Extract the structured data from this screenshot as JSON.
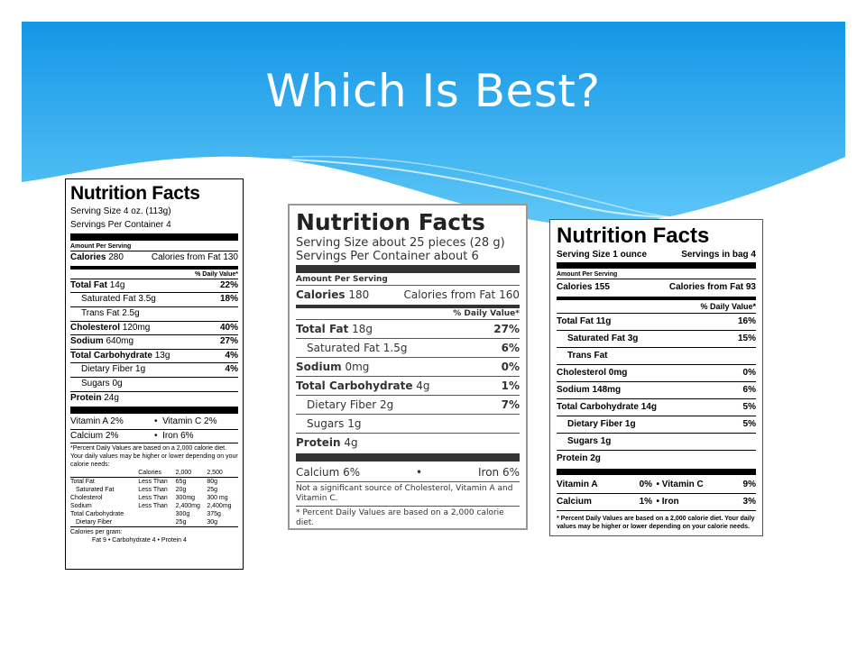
{
  "slide": {
    "title": "Which Is Best?",
    "colors": {
      "header_top": "#1496e6",
      "header_bottom": "#5ec7f7",
      "background": "#ffffff"
    }
  },
  "labels": [
    {
      "title": "Nutrition Facts",
      "serving_size": "Serving Size 4 oz. (113g)",
      "servings_per_container": "Servings Per Container 4",
      "amount_per_serving": "Amount Per Serving",
      "calories": {
        "label": "Calories",
        "value": "280",
        "fat_label": "Calories from Fat",
        "fat_value": "130"
      },
      "daily_value_header": "% Daily Value*",
      "nutrients": [
        {
          "name": "Total Fat",
          "amount": "14g",
          "dv": "22%",
          "bold": true,
          "indent": false
        },
        {
          "name": "Saturated Fat",
          "amount": "3.5g",
          "dv": "18%",
          "bold": false,
          "indent": true
        },
        {
          "name": "Trans Fat",
          "amount": "2.5g",
          "dv": "",
          "bold": false,
          "indent": true
        },
        {
          "name": "Cholesterol",
          "amount": "120mg",
          "dv": "40%",
          "bold": true,
          "indent": false
        },
        {
          "name": "Sodium",
          "amount": "640mg",
          "dv": "27%",
          "bold": true,
          "indent": false
        },
        {
          "name": "Total Carbohydrate",
          "amount": "13g",
          "dv": "4%",
          "bold": true,
          "indent": false
        },
        {
          "name": "Dietary Fiber",
          "amount": "1g",
          "dv": "4%",
          "bold": false,
          "indent": true
        },
        {
          "name": "Sugars",
          "amount": "0g",
          "dv": "",
          "bold": false,
          "indent": true
        }
      ],
      "protein": {
        "name": "Protein",
        "amount": "24g"
      },
      "vitamins": [
        {
          "left": "Vitamin A 2%",
          "right": "Vitamin C 2%"
        },
        {
          "left": "Calcium 2%",
          "right": "Iron 6%"
        }
      ],
      "footnote": "*Percent Daily Values are based on a 2,000 calorie diet. Your daily values may be higher or lower depending on your calorie needs:",
      "reference_table": {
        "header": [
          "",
          "Calories",
          "2,000",
          "2,500"
        ],
        "rows": [
          [
            "Total Fat",
            "Less Than",
            "65g",
            "80g"
          ],
          [
            "Saturated Fat",
            "Less Than",
            "20g",
            "25g"
          ],
          [
            "Cholesterol",
            "Less Than",
            "300mg",
            "300 mg"
          ],
          [
            "Sodium",
            "Less Than",
            "2,400mg",
            "2,400mg"
          ],
          [
            "Total Carbohydrate",
            "",
            "300g",
            "375g"
          ],
          [
            "Dietary Fiber",
            "",
            "25g",
            "30g"
          ]
        ]
      },
      "calories_per_gram": "Calories per gram:",
      "calories_per_gram_values": "Fat 9  •  Carbohydrate 4  •  Protein 4"
    },
    {
      "title": "Nutrition Facts",
      "serving_size": "Serving Size about 25 pieces (28 g)",
      "servings_per_container": "Servings Per Container about 6",
      "amount_per_serving": "Amount Per Serving",
      "calories": {
        "label": "Calories",
        "value": "180",
        "fat_label": "Calories from Fat",
        "fat_value": "160"
      },
      "daily_value_header": "% Daily Value*",
      "nutrients": [
        {
          "name": "Total Fat",
          "amount": "18g",
          "dv": "27%",
          "bold": true,
          "indent": false
        },
        {
          "name": "Saturated Fat",
          "amount": "1.5g",
          "dv": "6%",
          "bold": false,
          "indent": true
        },
        {
          "name": "Sodium",
          "amount": "0mg",
          "dv": "0%",
          "bold": true,
          "indent": false
        },
        {
          "name": "Total Carbohydrate",
          "amount": "4g",
          "dv": "1%",
          "bold": true,
          "indent": false
        },
        {
          "name": "Dietary Fiber",
          "amount": "2g",
          "dv": "7%",
          "bold": false,
          "indent": true
        },
        {
          "name": "Sugars",
          "amount": "1g",
          "dv": "",
          "bold": false,
          "indent": true
        }
      ],
      "protein": {
        "name": "Protein",
        "amount": "4g"
      },
      "minerals": {
        "left": "Calcium 6%",
        "right": "Iron 6%"
      },
      "note": "Not a significant source of Cholesterol, Vitamin A and Vitamin C.",
      "footnote": "* Percent Daily Values are based on a 2,000 calorie diet."
    },
    {
      "title": "Nutrition Facts",
      "serving_size": "Serving Size 1 ounce",
      "servings_per_container": "Servings in bag 4",
      "amount_per_serving": "Amount Per Serving",
      "calories": {
        "label": "Calories",
        "value": "155",
        "fat_label": "Calories from Fat",
        "fat_value": "93"
      },
      "daily_value_header": "% Daily Value*",
      "nutrients": [
        {
          "name": "Total Fat",
          "amount": "11g",
          "dv": "16%",
          "bold": true,
          "indent": false
        },
        {
          "name": "Saturated Fat",
          "amount": "3g",
          "dv": "15%",
          "bold": false,
          "indent": true
        },
        {
          "name": "Trans Fat",
          "amount": "",
          "dv": "",
          "bold": false,
          "indent": true
        },
        {
          "name": "Cholesterol",
          "amount": "0mg",
          "dv": "0%",
          "bold": true,
          "indent": false
        },
        {
          "name": "Sodium",
          "amount": "148mg",
          "dv": "6%",
          "bold": true,
          "indent": false
        },
        {
          "name": "Total Carbohydrate",
          "amount": "14g",
          "dv": "5%",
          "bold": true,
          "indent": false
        },
        {
          "name": "Dietary Fiber",
          "amount": "1g",
          "dv": "5%",
          "bold": false,
          "indent": true
        },
        {
          "name": "Sugars",
          "amount": "1g",
          "dv": "",
          "bold": false,
          "indent": true
        }
      ],
      "protein": {
        "name": "Protein",
        "amount": "2g"
      },
      "vitamins": [
        {
          "left_name": "Vitamin A",
          "left_dv": "0%",
          "right_name": "Vitamin C",
          "right_dv": "9%"
        },
        {
          "left_name": "Calcium",
          "left_dv": "1%",
          "right_name": "Iron",
          "right_dv": "3%"
        }
      ],
      "footnote": "* Percent Daily Values are based on a 2,000 calorie diet. Your daily values may be higher or lower depending on your calorie needs."
    }
  ]
}
